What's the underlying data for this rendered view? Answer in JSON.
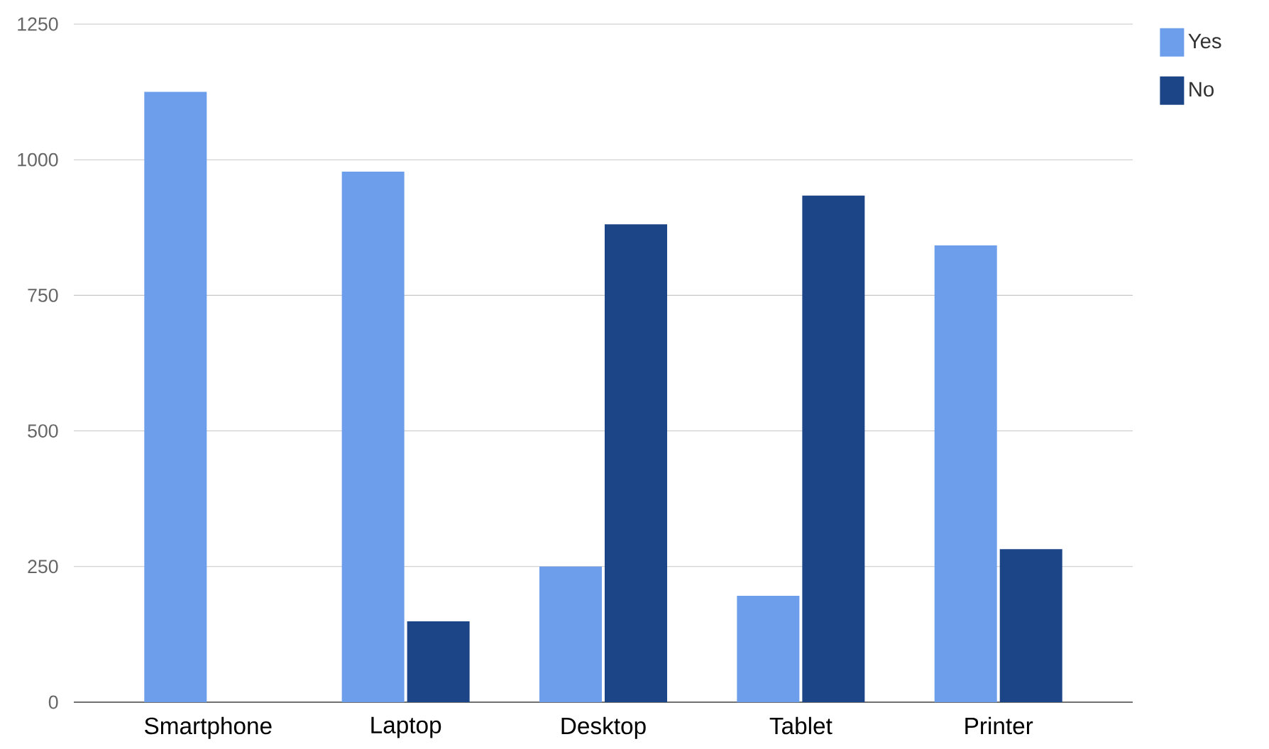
{
  "chart_data": {
    "type": "bar",
    "categories": [
      "Smartphone",
      "Laptop",
      "Desktop",
      "Tablet",
      "Printer"
    ],
    "series": [
      {
        "name": "Yes",
        "color": "#6d9eeb",
        "values": [
          1125,
          978,
          250,
          196,
          842
        ]
      },
      {
        "name": "No",
        "color": "#1c4587",
        "values": [
          0,
          149,
          881,
          934,
          282
        ]
      }
    ],
    "ylim": [
      0,
      1250
    ],
    "yticks": [
      0,
      250,
      500,
      750,
      1000,
      1250
    ],
    "grid": "y",
    "legend": "top right"
  }
}
